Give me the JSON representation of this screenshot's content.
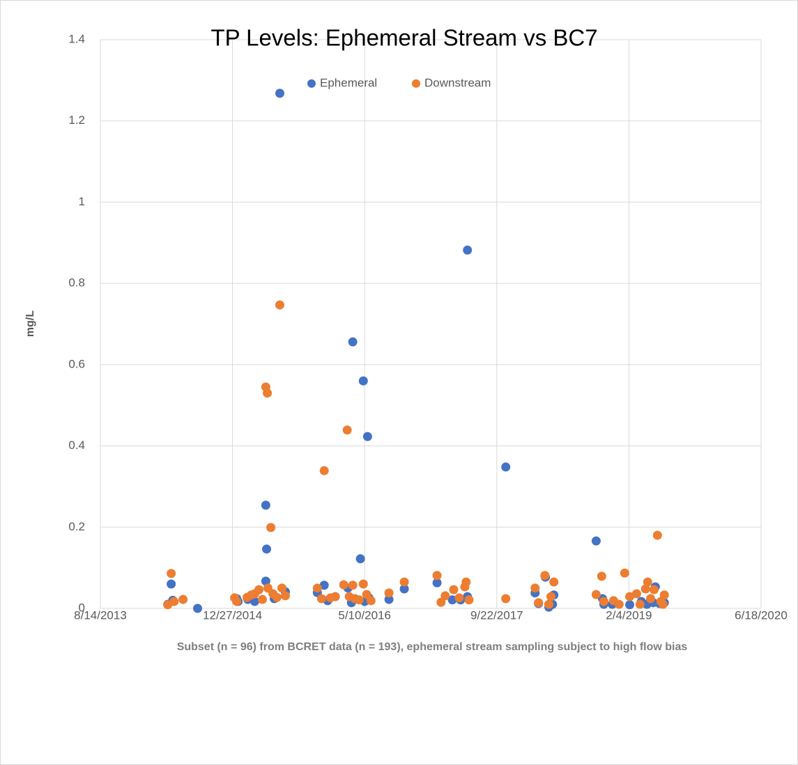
{
  "chart_data": {
    "type": "scatter",
    "title": "TP Levels: Ephemeral Stream vs BC7",
    "xlabel": "Subset (n = 96) from BCRET data (n = 193), ephemeral stream sampling subject to high flow bias",
    "ylabel": "mg/L",
    "xlim": [
      41500,
      44000
    ],
    "xticks": [
      {
        "value": 41500,
        "label": "8/14/2013"
      },
      {
        "value": 42000,
        "label": "12/27/2014"
      },
      {
        "value": 42500,
        "label": "5/10/2016"
      },
      {
        "value": 43000,
        "label": "9/22/2017"
      },
      {
        "value": 43500,
        "label": "2/4/2019"
      },
      {
        "value": 44000,
        "label": "6/18/2020"
      }
    ],
    "ylim": [
      0,
      1.4
    ],
    "yticks": [
      0,
      0.2,
      0.4,
      0.6,
      0.8,
      1,
      1.2,
      1.4
    ],
    "grid": true,
    "legend": "top",
    "series": [
      {
        "name": "Ephemeral",
        "color": "#4472c4",
        "x": [
          41755,
          41768,
          41774,
          41868,
          42016,
          42021,
          42058,
          42084,
          42126,
          42126,
          42129,
          42158,
          42179,
          42200,
          42321,
          42347,
          42360,
          42389,
          42437,
          42450,
          42455,
          42484,
          42495,
          42500,
          42511,
          42516,
          42592,
          42650,
          42774,
          42832,
          42863,
          42889,
          42889,
          43034,
          43145,
          43158,
          43184,
          43197,
          43211,
          43216,
          43376,
          43400,
          43405,
          43437,
          43503,
          43547,
          43568,
          43592,
          43600,
          43616,
          43634
        ],
        "values": [
          0.01,
          0.06,
          0.02,
          0.0,
          0.024,
          0.017,
          0.022,
          0.017,
          0.067,
          0.254,
          0.146,
          0.024,
          1.268,
          0.041,
          0.039,
          0.057,
          0.019,
          0.029,
          0.05,
          0.014,
          0.656,
          0.122,
          0.56,
          0.017,
          0.423,
          0.026,
          0.022,
          0.048,
          0.063,
          0.021,
          0.021,
          0.882,
          0.029,
          0.348,
          0.038,
          0.012,
          0.077,
          0.003,
          0.01,
          0.033,
          0.166,
          0.024,
          0.01,
          0.01,
          0.009,
          0.017,
          0.01,
          0.014,
          0.053,
          0.012,
          0.014
        ]
      },
      {
        "name": "Downstream",
        "color": "#ed7d31",
        "x": [
          41755,
          41768,
          41779,
          41813,
          42008,
          42016,
          42055,
          42071,
          42084,
          42100,
          42113,
          42126,
          42132,
          42134,
          42145,
          42153,
          42168,
          42179,
          42187,
          42200,
          42321,
          42337,
          42347,
          42371,
          42389,
          42421,
          42434,
          42442,
          42455,
          42463,
          42479,
          42495,
          42508,
          42524,
          42592,
          42650,
          42774,
          42789,
          42805,
          42837,
          42858,
          42879,
          42884,
          42895,
          43034,
          43145,
          43158,
          43182,
          43197,
          43205,
          43216,
          43376,
          43397,
          43405,
          43442,
          43463,
          43484,
          43503,
          43529,
          43542,
          43563,
          43571,
          43582,
          43595,
          43608,
          43621,
          43629,
          43634
        ],
        "values": [
          0.009,
          0.086,
          0.017,
          0.022,
          0.026,
          0.017,
          0.027,
          0.033,
          0.036,
          0.046,
          0.022,
          0.545,
          0.53,
          0.05,
          0.199,
          0.036,
          0.027,
          0.747,
          0.05,
          0.031,
          0.05,
          0.024,
          0.339,
          0.026,
          0.029,
          0.058,
          0.439,
          0.029,
          0.057,
          0.024,
          0.021,
          0.06,
          0.034,
          0.019,
          0.038,
          0.065,
          0.081,
          0.015,
          0.031,
          0.046,
          0.026,
          0.053,
          0.065,
          0.021,
          0.024,
          0.05,
          0.014,
          0.081,
          0.01,
          0.029,
          0.065,
          0.034,
          0.079,
          0.017,
          0.019,
          0.01,
          0.087,
          0.029,
          0.036,
          0.01,
          0.048,
          0.065,
          0.024,
          0.046,
          0.18,
          0.017,
          0.01,
          0.033
        ]
      }
    ]
  }
}
